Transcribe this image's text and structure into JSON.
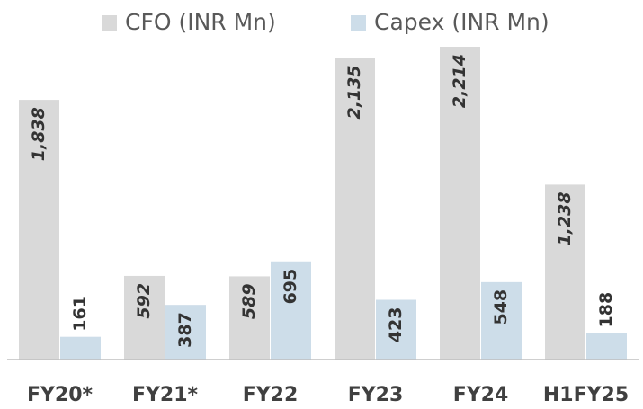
{
  "chart_data": {
    "type": "bar",
    "categories": [
      "FY20*",
      "FY21*",
      "FY22",
      "FY23",
      "FY24",
      "H1FY25"
    ],
    "series": [
      {
        "name": "CFO (INR Mn)",
        "color": "#d9d9d9",
        "values": [
          1838,
          592,
          589,
          2135,
          2214,
          1238
        ],
        "value_labels": [
          "1,838",
          "592",
          "589",
          "2,135",
          "2,214",
          "1,238"
        ]
      },
      {
        "name": "Capex (INR Mn)",
        "color": "#cddde9",
        "values": [
          161,
          387,
          695,
          423,
          548,
          188
        ]
      }
    ],
    "legend": "top"
  }
}
